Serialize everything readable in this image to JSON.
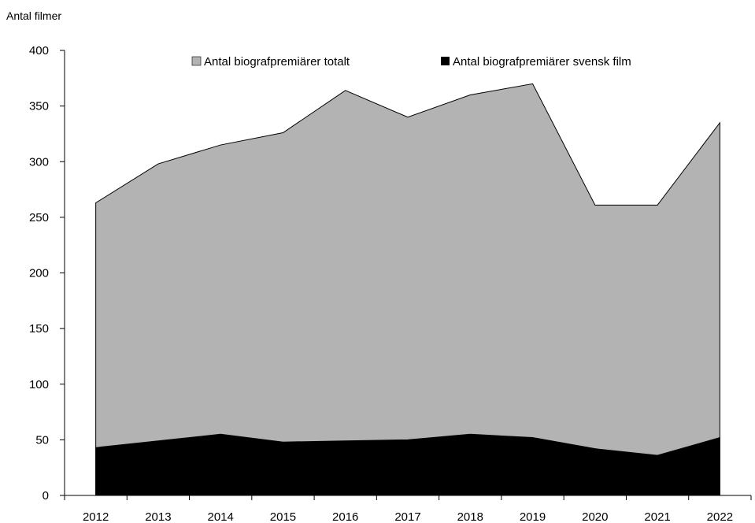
{
  "chart_data": {
    "type": "area",
    "ylabel": "Antal filmer",
    "xlabel": "",
    "title": "",
    "categories": [
      "2012",
      "2013",
      "2014",
      "2015",
      "2016",
      "2017",
      "2018",
      "2019",
      "2020",
      "2021",
      "2022"
    ],
    "series": [
      {
        "name": "Antal biografpremiärer totalt",
        "color": "#b3b3b3",
        "values": [
          263,
          298,
          315,
          326,
          364,
          340,
          360,
          370,
          261,
          261,
          335
        ]
      },
      {
        "name": "Antal biografpremiärer svensk film",
        "color": "#000000",
        "values": [
          43,
          49,
          55,
          48,
          49,
          50,
          55,
          52,
          42,
          36,
          52
        ]
      }
    ],
    "ylim": [
      0,
      400
    ],
    "yticks": [
      0,
      50,
      100,
      150,
      200,
      250,
      300,
      350,
      400
    ],
    "grid": false,
    "legend_position": "top"
  }
}
